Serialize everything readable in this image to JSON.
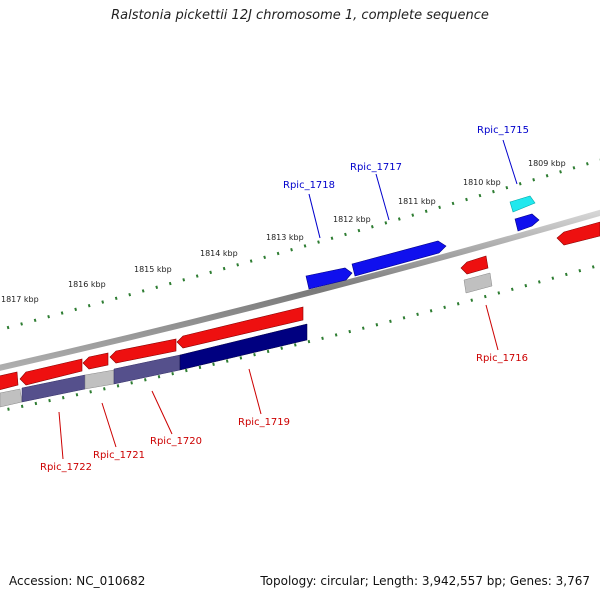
{
  "title": "Ralstonia pickettii 12J chromosome 1, complete sequence",
  "footer": {
    "accession": "Accession: NC_010682",
    "topology": "Topology: circular; Length: 3,942,557 bp; Genes: 3,767"
  },
  "colors": {
    "background": "#ffffff",
    "backbone": "#888888",
    "tick": "#2e7d32",
    "plus_strand_gene": "#1010ee",
    "minus_strand_gene": "#ee1010",
    "cds_minus": "#ee1010",
    "cds_minus_dark": "#000080",
    "cds_minus_mid": "#55508c",
    "pseudo_gray": "#c0c0c0",
    "trna_cyan": "#20e8ee",
    "label_plus": "#0000cc",
    "label_minus": "#cc0000"
  },
  "kbp_labels": [
    "1809 kbp",
    "1810 kbp",
    "1811 kbp",
    "1812 kbp",
    "1813 kbp",
    "1814 kbp",
    "1815 kbp",
    "1816 kbp",
    "1817 kbp"
  ],
  "genes": [
    {
      "name": "Rpic_1715",
      "strand": "plus"
    },
    {
      "name": "Rpic_1716",
      "strand": "minus"
    },
    {
      "name": "Rpic_1717",
      "strand": "plus"
    },
    {
      "name": "Rpic_1718",
      "strand": "plus"
    },
    {
      "name": "Rpic_1719",
      "strand": "minus"
    },
    {
      "name": "Rpic_1720",
      "strand": "minus"
    },
    {
      "name": "Rpic_1721",
      "strand": "minus"
    },
    {
      "name": "Rpic_1722",
      "strand": "minus"
    }
  ]
}
